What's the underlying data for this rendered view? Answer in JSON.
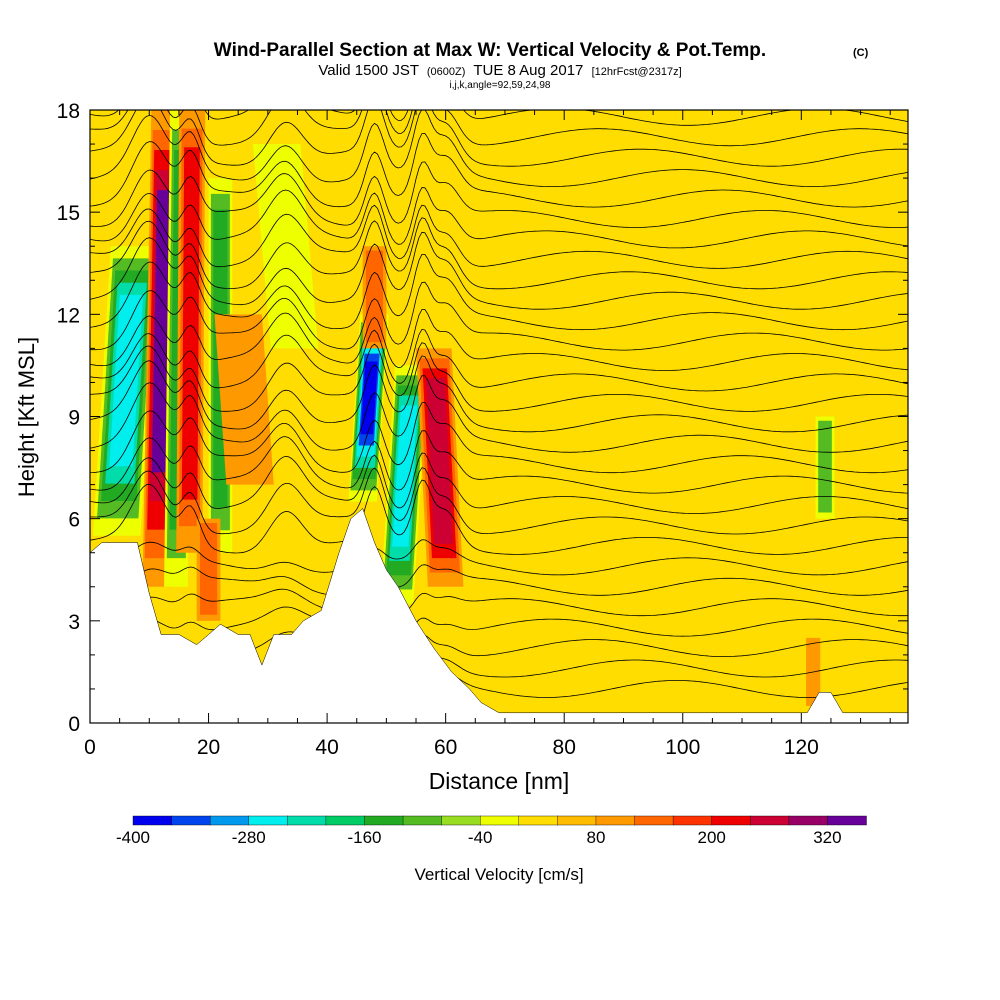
{
  "header": {
    "title": "Wind-Parallel Section at Max W: Vertical Velocity & Pot.Temp.",
    "copyright": "(C)",
    "valid_prefix": "Valid 1500 JST",
    "valid_utc": "(0600Z)",
    "valid_date": "TUE 8 Aug 2017",
    "forecast": "[12hrFcst@2317z]",
    "indices": "i,j,k,angle=92,59,24,98"
  },
  "chart_data": {
    "type": "heatmap",
    "title": "Wind-Parallel Section at Max W: Vertical Velocity & Pot.Temp.",
    "xlabel": "Distance [nm]",
    "ylabel": "Height [Kft MSL]",
    "xlim": [
      0,
      138
    ],
    "ylim": [
      0,
      18
    ],
    "x_ticks": [
      "0",
      "20",
      "40",
      "60",
      "80",
      "100",
      "120"
    ],
    "y_ticks": [
      "0",
      "3",
      "6",
      "9",
      "12",
      "15",
      "18"
    ],
    "colorbar": {
      "label": "Vertical Velocity [cm/s]",
      "range": [
        -400,
        360
      ],
      "tick_labels": [
        "-400",
        "-280",
        "-160",
        "-40",
        "80",
        "200",
        "320"
      ],
      "colors": [
        "#0000ee",
        "#0044ee",
        "#0099ee",
        "#00eeee",
        "#00ddaa",
        "#00cc66",
        "#22aa22",
        "#55bb22",
        "#99dd22",
        "#eeff00",
        "#ffdd00",
        "#ffbb00",
        "#ff9900",
        "#ff6600",
        "#ff3300",
        "#ee0000",
        "#cc0033",
        "#990066",
        "#660099"
      ]
    },
    "terrain": [
      [
        0,
        5.0
      ],
      [
        2,
        5.3
      ],
      [
        8,
        5.3
      ],
      [
        10,
        3.8
      ],
      [
        12,
        2.6
      ],
      [
        15,
        2.6
      ],
      [
        18,
        2.3
      ],
      [
        20,
        2.6
      ],
      [
        22,
        2.9
      ],
      [
        25,
        2.6
      ],
      [
        27,
        2.6
      ],
      [
        29,
        1.7
      ],
      [
        31,
        2.6
      ],
      [
        34,
        2.6
      ],
      [
        36,
        3.0
      ],
      [
        39,
        3.3
      ],
      [
        42,
        5.0
      ],
      [
        44,
        6.0
      ],
      [
        46,
        6.3
      ],
      [
        48,
        5.3
      ],
      [
        50,
        4.5
      ],
      [
        52,
        4.0
      ],
      [
        55,
        3.0
      ],
      [
        58,
        2.2
      ],
      [
        61,
        1.5
      ],
      [
        64,
        1.0
      ],
      [
        66,
        0.6
      ],
      [
        69,
        0.3
      ],
      [
        80,
        0.3
      ],
      [
        100,
        0.3
      ],
      [
        121,
        0.3
      ],
      [
        122,
        0.6
      ],
      [
        123,
        0.9
      ],
      [
        125,
        0.9
      ],
      [
        126,
        0.6
      ],
      [
        127,
        0.3
      ],
      [
        138,
        0.3
      ]
    ],
    "velocity_features": [
      {
        "x": 6,
        "half_width": 2.0,
        "y_range": [
          5.5,
          14
        ],
        "lean": 3.0,
        "value": -300
      },
      {
        "x": 12,
        "half_width": 1.2,
        "y_range": [
          4,
          18
        ],
        "lean": 1.5,
        "value": 330
      },
      {
        "x": 15,
        "half_width": 1.0,
        "y_range": [
          4,
          18
        ],
        "lean": 1.0,
        "value": -180
      },
      {
        "x": 17,
        "half_width": 1.1,
        "y_range": [
          5,
          18
        ],
        "lean": 0.5,
        "value": 240
      },
      {
        "x": 22,
        "half_width": 1.0,
        "y_range": [
          5,
          16
        ],
        "lean": 0.0,
        "value": -200
      },
      {
        "x": 20,
        "half_width": 1.0,
        "y_range": [
          3,
          6
        ],
        "lean": 0.0,
        "value": 150
      },
      {
        "x": 26,
        "half_width": 2.0,
        "y_range": [
          7,
          12
        ],
        "lean": -2.0,
        "value": 120
      },
      {
        "x": 33,
        "half_width": 2.0,
        "y_range": [
          11,
          17
        ],
        "lean": -3.0,
        "value": -80
      },
      {
        "x": 47,
        "half_width": 1.2,
        "y_range": [
          6.5,
          12
        ],
        "lean": 2.0,
        "value": -400
      },
      {
        "x": 53,
        "half_width": 1.4,
        "y_range": [
          3.5,
          10.5
        ],
        "lean": 2.5,
        "value": -320
      },
      {
        "x": 59,
        "half_width": 1.5,
        "y_range": [
          4,
          11
        ],
        "lean": -2.0,
        "value": 260
      },
      {
        "x": 48,
        "half_width": 1.0,
        "y_range": [
          11,
          14
        ],
        "lean": 0.0,
        "value": 140
      },
      {
        "x": 124,
        "half_width": 0.8,
        "y_range": [
          6,
          9
        ],
        "lean": 0.0,
        "value": -100
      },
      {
        "x": 122,
        "half_width": 0.6,
        "y_range": [
          0.5,
          2.5
        ],
        "lean": 0.0,
        "value": 100
      }
    ]
  }
}
